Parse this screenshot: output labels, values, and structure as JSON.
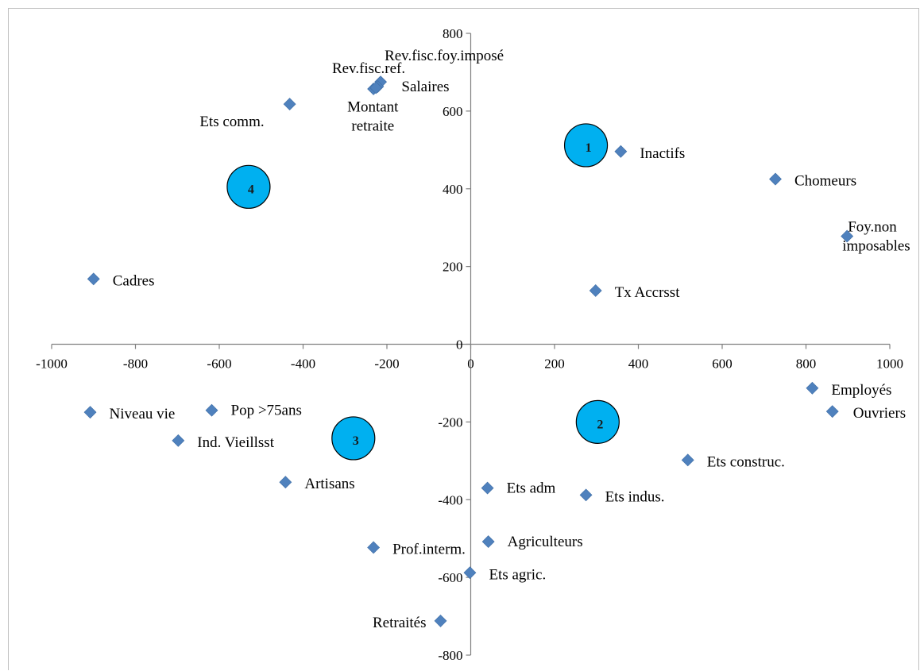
{
  "chart_data": {
    "type": "scatter",
    "title": "",
    "xlabel": "",
    "ylabel": "",
    "xlim": [
      -1000,
      1000
    ],
    "ylim": [
      -800,
      800
    ],
    "x_ticks": [
      -1000,
      -800,
      -600,
      -400,
      -200,
      0,
      200,
      400,
      600,
      800,
      1000
    ],
    "y_ticks": [
      -800,
      -600,
      -400,
      -200,
      0,
      200,
      400,
      600,
      800
    ],
    "grid": false,
    "legend": "none",
    "marker_color": "#4f81bd",
    "cluster_color": "#00b0f0",
    "points": [
      {
        "label": "Rev.fisc.foy.imposé",
        "x": -215,
        "y": 675
      },
      {
        "label": "Rev.fisc.ref.",
        "x": -232,
        "y": 657
      },
      {
        "label": "Salaires",
        "x": -222,
        "y": 663
      },
      {
        "label": "Ets comm.",
        "x": -432,
        "y": 618
      },
      {
        "label": "Montant retraite",
        "x": -226,
        "y": 660
      },
      {
        "label": "Inactifs",
        "x": 358,
        "y": 496
      },
      {
        "label": "Chomeurs",
        "x": 727,
        "y": 425
      },
      {
        "label": "Foy.non imposables",
        "x": 898,
        "y": 278
      },
      {
        "label": "Cadres",
        "x": -900,
        "y": 168
      },
      {
        "label": "Tx Accrsst",
        "x": 298,
        "y": 138
      },
      {
        "label": "Employés",
        "x": 815,
        "y": -113
      },
      {
        "label": "Ouvriers",
        "x": 863,
        "y": -173
      },
      {
        "label": "Niveau vie",
        "x": -908,
        "y": -175
      },
      {
        "label": "Pop >75ans",
        "x": -618,
        "y": -170
      },
      {
        "label": "Ind. Vieillsst",
        "x": -698,
        "y": -248
      },
      {
        "label": "Ets construc.",
        "x": 518,
        "y": -298
      },
      {
        "label": "Artisans",
        "x": -442,
        "y": -355
      },
      {
        "label": "Ets adm",
        "x": 40,
        "y": -370
      },
      {
        "label": "Ets indus.",
        "x": 275,
        "y": -388
      },
      {
        "label": "Agriculteurs",
        "x": 42,
        "y": -508
      },
      {
        "label": "Prof.interm.",
        "x": -232,
        "y": -523
      },
      {
        "label": "Ets agric.",
        "x": -2,
        "y": -588
      },
      {
        "label": "Retraités",
        "x": -72,
        "y": -712
      }
    ],
    "clusters": [
      {
        "label": "1",
        "x": 275,
        "y": 512
      },
      {
        "label": "2",
        "x": 303,
        "y": -200
      },
      {
        "label": "3",
        "x": -280,
        "y": -242
      },
      {
        "label": "4",
        "x": -530,
        "y": 405
      }
    ]
  }
}
